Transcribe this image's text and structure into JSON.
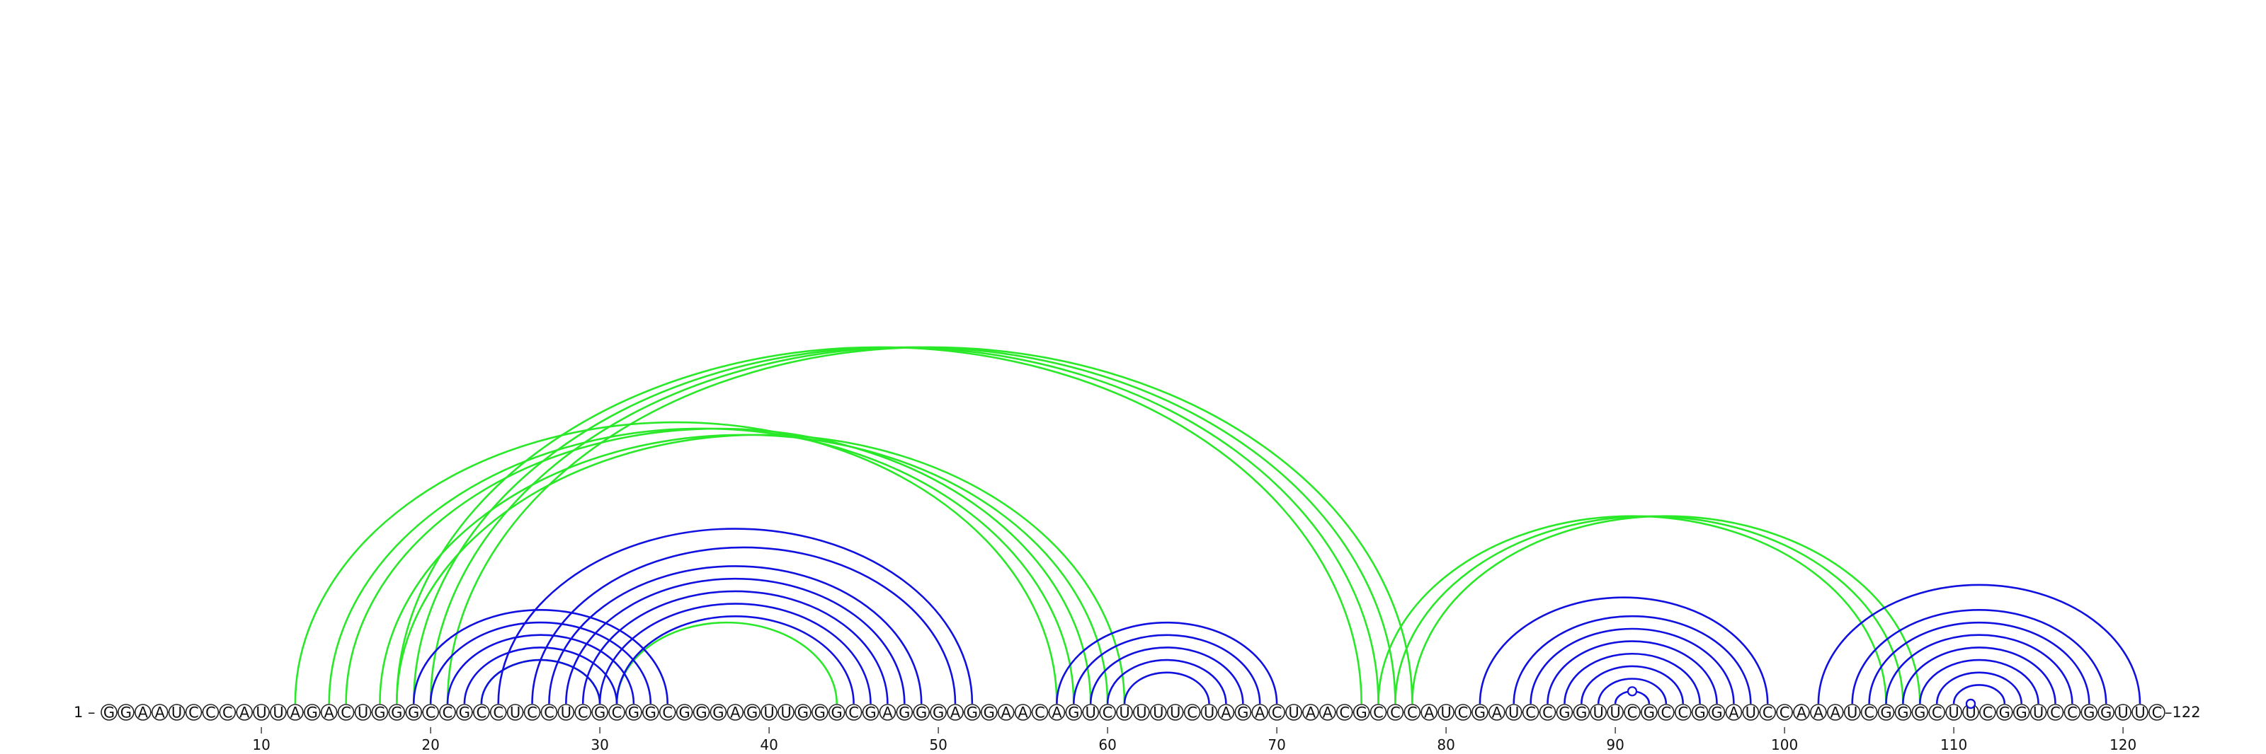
{
  "sequence": "GGAAUCCCAUUAGACUGGGCCGCCUCCUCGCGGCGGGAGUUGGGCGAGGGAGGAACAGUCUUUUCUAGACUAACGCCCAUCGAUCCGGUUCGCCGGAUCCAAAUCGGGCUUCGGUCCGGUUC",
  "start_label": "1 –",
  "end_label": "–122",
  "ticks": [
    10,
    20,
    30,
    40,
    50,
    60,
    70,
    80,
    90,
    100,
    110,
    120
  ],
  "colors": {
    "blue": "#1010e0",
    "green": "#28e828"
  },
  "arcs_blue": [
    [
      19,
      34
    ],
    [
      20,
      33
    ],
    [
      21,
      32
    ],
    [
      22,
      31
    ],
    [
      23,
      30
    ],
    [
      24,
      52
    ],
    [
      26,
      51
    ],
    [
      27,
      49
    ],
    [
      28,
      48
    ],
    [
      29,
      47
    ],
    [
      30,
      46
    ],
    [
      31,
      45
    ],
    [
      57,
      70
    ],
    [
      58,
      69
    ],
    [
      59,
      68
    ],
    [
      60,
      67
    ],
    [
      61,
      66
    ],
    [
      82,
      99
    ],
    [
      84,
      98
    ],
    [
      85,
      97
    ],
    [
      86,
      96
    ],
    [
      87,
      95
    ],
    [
      88,
      94
    ],
    [
      89,
      93
    ],
    [
      90,
      92
    ],
    [
      102,
      121
    ],
    [
      104,
      119
    ],
    [
      105,
      118
    ],
    [
      106,
      117
    ],
    [
      107,
      116
    ],
    [
      108,
      115
    ],
    [
      109,
      114
    ],
    [
      110,
      113
    ]
  ],
  "arcs_green": [
    [
      12,
      57
    ],
    [
      14,
      58
    ],
    [
      15,
      59
    ],
    [
      17,
      60
    ],
    [
      18,
      61
    ],
    [
      18,
      75
    ],
    [
      19,
      76
    ],
    [
      20,
      77
    ],
    [
      21,
      78
    ],
    [
      23,
      30
    ],
    [
      31,
      44
    ],
    [
      76,
      106
    ],
    [
      77,
      107
    ],
    [
      78,
      108
    ]
  ],
  "markers": [
    91,
    111,
    111,
    111
  ]
}
